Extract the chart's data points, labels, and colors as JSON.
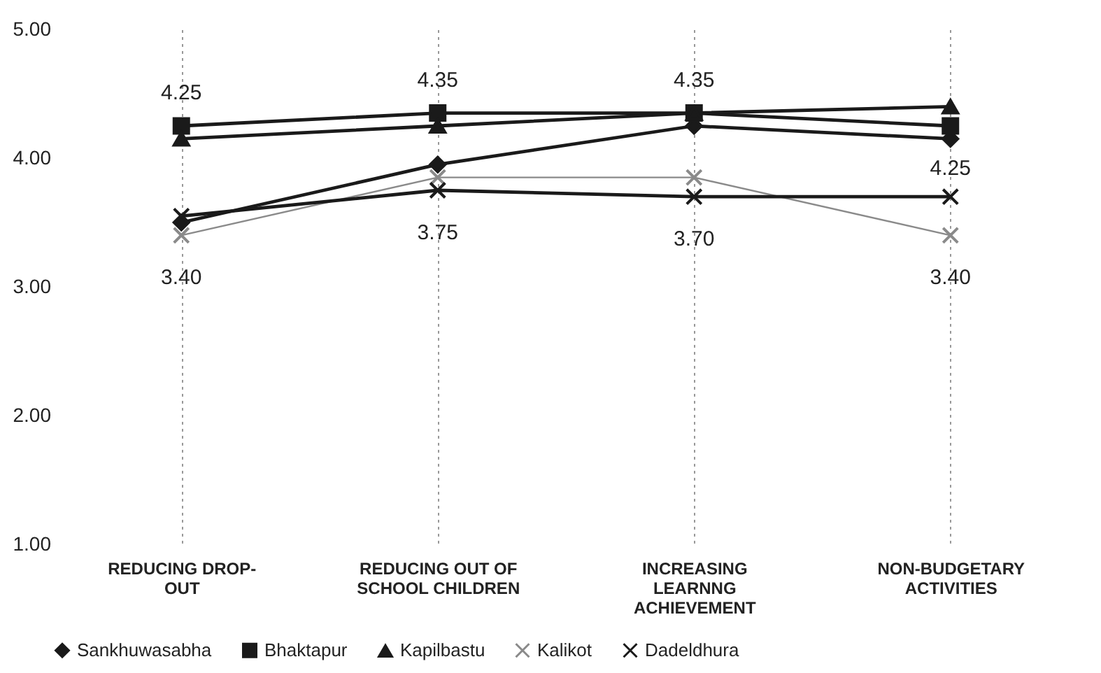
{
  "chart_data": {
    "type": "line",
    "categories": [
      "REDUCING DROP-OUT",
      "REDUCING OUT OF SCHOOL CHILDREN",
      "INCREASING LEARNNG ACHIEVEMENT",
      "NON-BUDGETARY ACTIVITIES"
    ],
    "series": [
      {
        "name": "Sankhuwasabha",
        "color": "#1a1a1a",
        "marker": "diamond",
        "values": [
          3.5,
          3.95,
          4.25,
          4.15
        ]
      },
      {
        "name": "Bhaktapur",
        "color": "#1a1a1a",
        "marker": "square",
        "values": [
          4.25,
          4.35,
          4.35,
          4.25
        ],
        "value_labels": [
          "4.25",
          "4.35",
          "4.35",
          "4.25"
        ]
      },
      {
        "name": "Kapilbastu",
        "color": "#1a1a1a",
        "marker": "triangle",
        "values": [
          4.15,
          4.25,
          4.35,
          4.4
        ]
      },
      {
        "name": "Kalikot",
        "color": "#8a8a8a",
        "marker": "cross",
        "values": [
          3.4,
          3.85,
          3.85,
          3.4
        ],
        "value_labels": [
          "3.40",
          null,
          null,
          "3.40"
        ]
      },
      {
        "name": "Dadeldhura",
        "color": "#1a1a1a",
        "marker": "cross",
        "values": [
          3.55,
          3.75,
          3.7,
          3.7
        ],
        "value_labels": [
          null,
          "3.75",
          "3.70",
          null
        ]
      }
    ],
    "ylim": [
      1,
      5
    ],
    "yticks": [
      {
        "value": 1,
        "label": "1.00"
      },
      {
        "value": 2,
        "label": "2.00"
      },
      {
        "value": 3,
        "label": "3.00"
      },
      {
        "value": 4,
        "label": "4.00"
      },
      {
        "value": 5,
        "label": "5.00"
      }
    ],
    "grid": "x",
    "legend": "bottom",
    "line_style": "solid"
  }
}
